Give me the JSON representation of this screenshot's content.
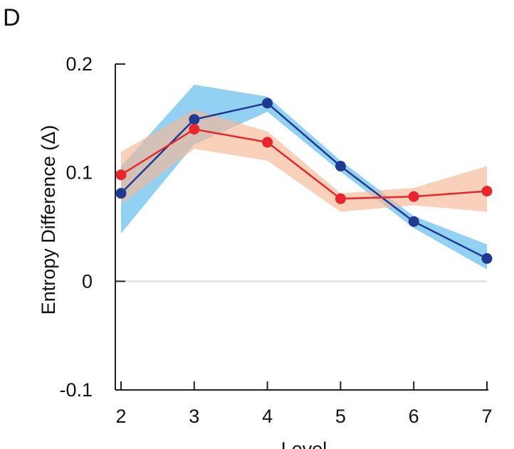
{
  "panel_label": "D",
  "chart_data": {
    "type": "line",
    "title": "",
    "xlabel": "Level",
    "ylabel": "Entropy Difference (Δ)",
    "x": [
      2,
      3,
      4,
      5,
      6,
      7
    ],
    "xlim": [
      2,
      7
    ],
    "ylim": [
      -0.1,
      0.2
    ],
    "yticks": [
      -0.1,
      0,
      0.1,
      0.2
    ],
    "ytick_labels": [
      "-0.1",
      "0",
      "0.1",
      "0.2"
    ],
    "xtick_labels": [
      "2",
      "3",
      "4",
      "5",
      "6",
      "7"
    ],
    "zero_line": true,
    "grid": false,
    "series": [
      {
        "color": "#1f3a93",
        "band_color": "#6ec1ee",
        "values": [
          0.081,
          0.149,
          0.164,
          0.106,
          0.055,
          0.021
        ],
        "lower": [
          0.044,
          0.126,
          0.156,
          0.101,
          0.049,
          0.011
        ],
        "upper": [
          0.106,
          0.181,
          0.17,
          0.111,
          0.06,
          0.034
        ]
      },
      {
        "color": "#e8262b",
        "band_color": "#f6b896",
        "values": [
          0.098,
          0.14,
          0.128,
          0.076,
          0.078,
          0.083
        ],
        "lower": [
          0.071,
          0.122,
          0.111,
          0.064,
          0.07,
          0.064
        ],
        "upper": [
          0.119,
          0.158,
          0.138,
          0.081,
          0.086,
          0.106
        ]
      }
    ]
  }
}
